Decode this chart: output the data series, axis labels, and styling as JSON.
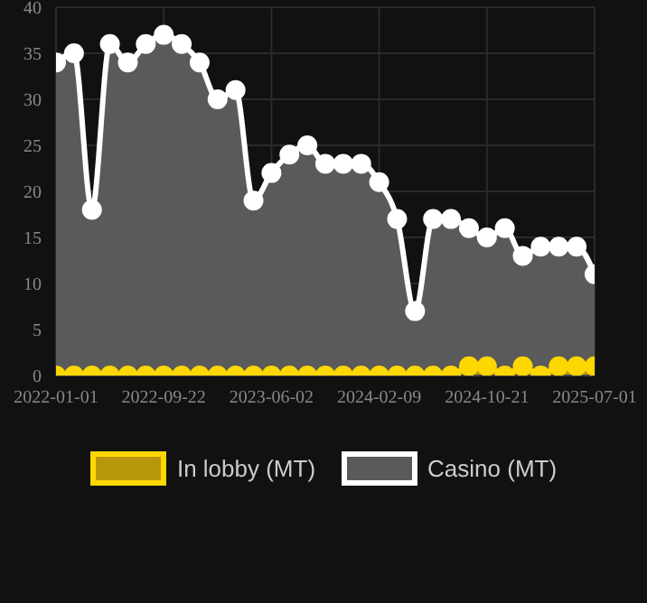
{
  "chart_data": {
    "type": "area",
    "categories": [
      "2022-01-01",
      null,
      null,
      null,
      null,
      null,
      "2022-09-22",
      null,
      null,
      null,
      null,
      null,
      "2023-06-02",
      null,
      null,
      null,
      null,
      null,
      "2024-02-09",
      null,
      null,
      null,
      null,
      null,
      "2024-10-21",
      null,
      null,
      null,
      null,
      null,
      "2025-07-01"
    ],
    "series": [
      {
        "name": "In lobby (MT)",
        "color": "#ffd700",
        "values": [
          0,
          0,
          0,
          0,
          0,
          0,
          0,
          0,
          0,
          0,
          0,
          0,
          0,
          0,
          0,
          0,
          0,
          0,
          0,
          0,
          0,
          0,
          0,
          1,
          1,
          0,
          1,
          0,
          1,
          1,
          1
        ]
      },
      {
        "name": "Casino (MT)",
        "color": "#ffffff",
        "values": [
          34,
          35,
          18,
          36,
          34,
          36,
          37,
          36,
          34,
          30,
          31,
          19,
          22,
          24,
          25,
          23,
          23,
          23,
          21,
          17,
          7,
          17,
          17,
          16,
          15,
          16,
          13,
          14,
          14,
          14,
          11
        ]
      }
    ],
    "ylim": [
      0,
      40
    ],
    "yticks": [
      0,
      5,
      10,
      15,
      20,
      25,
      30,
      35,
      40
    ],
    "grid": true,
    "legend": "bottom",
    "marker": "circle",
    "line_style": "solid"
  }
}
